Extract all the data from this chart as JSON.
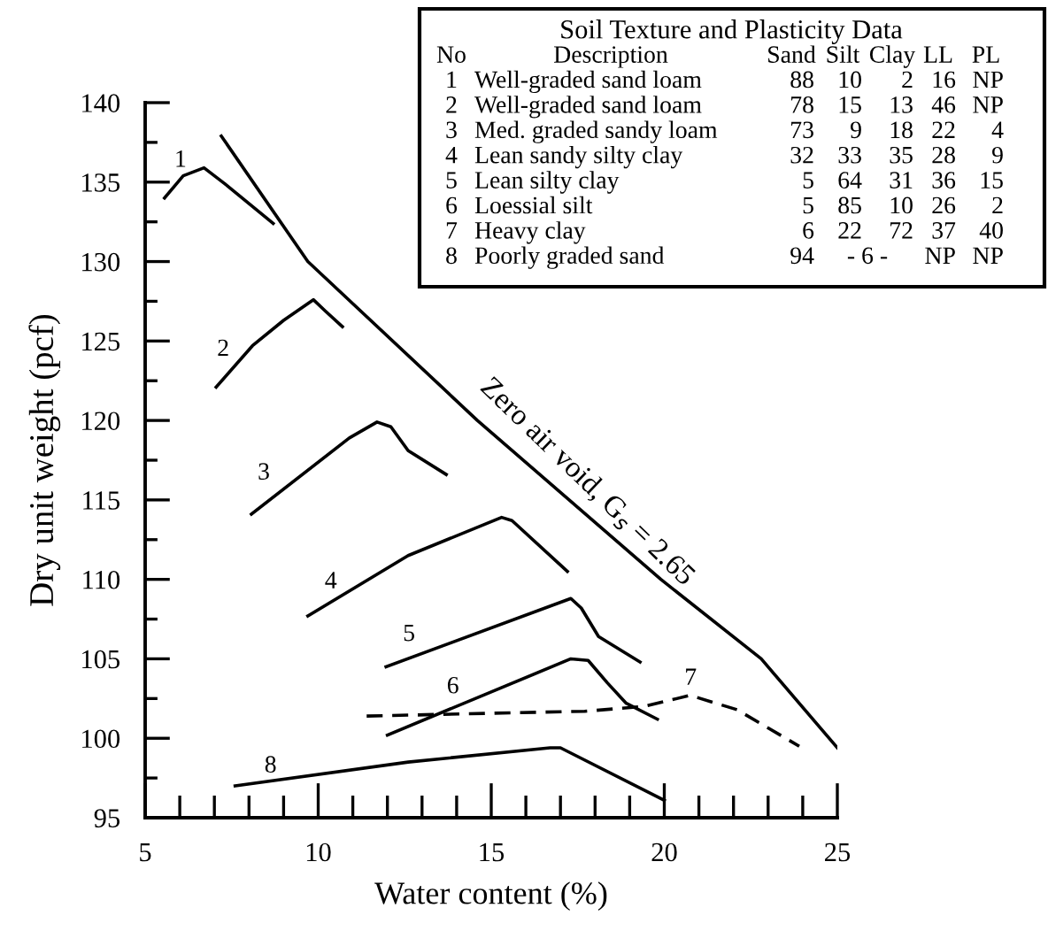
{
  "chart_data": {
    "type": "line",
    "xlabel": "Water content (%)",
    "ylabel": "Dry unit weight (pcf)",
    "xlim": [
      5,
      25
    ],
    "ylim": [
      95,
      140
    ],
    "xticks": [
      5,
      {
        "value": 6,
        "label": null
      },
      {
        "value": 7,
        "label": null
      },
      {
        "value": 8,
        "label": null
      },
      {
        "value": 9,
        "label": null
      },
      10,
      {
        "value": 11,
        "label": null
      },
      {
        "value": 12,
        "label": null
      },
      {
        "value": 13,
        "label": null
      },
      {
        "value": 14,
        "label": null
      },
      15,
      {
        "value": 16,
        "label": null
      },
      {
        "value": 17,
        "label": null
      },
      {
        "value": 18,
        "label": null
      },
      {
        "value": 19,
        "label": null
      },
      20,
      {
        "value": 21,
        "label": null
      },
      {
        "value": 22,
        "label": null
      },
      {
        "value": 23,
        "label": null
      },
      {
        "value": 24,
        "label": null
      },
      25
    ],
    "yticks": [
      95,
      {
        "value": 97.5,
        "label": null
      },
      100,
      {
        "value": 102.5,
        "label": null
      },
      105,
      {
        "value": 107.5,
        "label": null
      },
      110,
      {
        "value": 112.5,
        "label": null
      },
      115,
      {
        "value": 117.5,
        "label": null
      },
      120,
      {
        "value": 122.5,
        "label": null
      },
      125,
      {
        "value": 127.5,
        "label": null
      },
      130,
      {
        "value": 132.5,
        "label": null
      },
      135,
      {
        "value": 137.5,
        "label": null
      },
      140
    ],
    "grid": false,
    "legend": false,
    "marker": "none",
    "series": [
      {
        "name": "1",
        "color": "#000000",
        "x": [
          5.56,
          6.1,
          6.7,
          7.3,
          8.7
        ],
        "values": [
          134.0,
          135.4,
          135.9,
          134.9,
          132.4
        ]
      },
      {
        "name": "2",
        "color": "#000000",
        "x": [
          7.05,
          8.1,
          9.0,
          9.86,
          10.2,
          10.7
        ],
        "values": [
          122.1,
          124.7,
          126.3,
          127.6,
          126.9,
          125.9
        ]
      },
      {
        "name": "3",
        "color": "#000000",
        "x": [
          8.07,
          10.9,
          11.7,
          12.1,
          12.6,
          13.7
        ],
        "values": [
          114.1,
          118.9,
          119.9,
          119.6,
          118.1,
          116.6
        ]
      },
      {
        "name": "4",
        "color": "#000000",
        "x": [
          9.7,
          12.6,
          15.3,
          15.6,
          17.2
        ],
        "values": [
          107.7,
          111.5,
          113.9,
          113.7,
          110.5
        ]
      },
      {
        "name": "5",
        "color": "#000000",
        "x": [
          11.96,
          17.3,
          17.6,
          18.1,
          19.3
        ],
        "values": [
          104.5,
          108.8,
          108.2,
          106.4,
          104.8
        ]
      },
      {
        "name": "6",
        "color": "#000000",
        "x": [
          12.0,
          17.3,
          17.8,
          18.35,
          18.9,
          19.8
        ],
        "values": [
          100.2,
          105.0,
          104.9,
          103.5,
          102.2,
          101.2
        ]
      },
      {
        "name": "7",
        "color": "#000000",
        "line_style": "dashed",
        "x": [
          11.4,
          17.7,
          19.4,
          20.75,
          22.1,
          23.9
        ],
        "values": [
          101.4,
          101.7,
          102.0,
          102.7,
          101.8,
          99.5
        ]
      },
      {
        "name": "8",
        "color": "#000000",
        "x": [
          7.6,
          12.6,
          16.7,
          17.0,
          20.0
        ],
        "values": [
          97.0,
          98.5,
          99.4,
          99.4,
          96.1
        ]
      },
      {
        "name": "Zero air void, G$_{s}$ = 2.65",
        "color": "#000000",
        "x": [
          7.2,
          9.7,
          14.6,
          19.9,
          22.8,
          25.0
        ],
        "values": [
          137.9,
          130,
          120,
          110,
          105,
          99.4
        ]
      }
    ],
    "annotations": [
      "Soil Texture and Plasticity Data",
      "No\tDescription\tSand\tSilt\tClay\tLL\tPL",
      "1\tWell-graded sand loam\t88\t10\t2\t16\tNP",
      "2\tWell-graded sand loam\t78\t15\t13\t46\tNP",
      "3\tMed. graded sandy loam\t73\t9\t18\t22\t4",
      "4\tLean sandy silty clay\t32\t33\t35\t28\t9",
      "5\tLean silty clay\t5\t64\t31\t36\t15",
      "6\tLoessial silt\t5\t85\t10\t26\t2",
      "7\tHeavy clay\t6\t22\t72\t37\t40",
      "8\tPoorly graded sand\t94\t- 6 -\tNP\tNP"
    ]
  }
}
